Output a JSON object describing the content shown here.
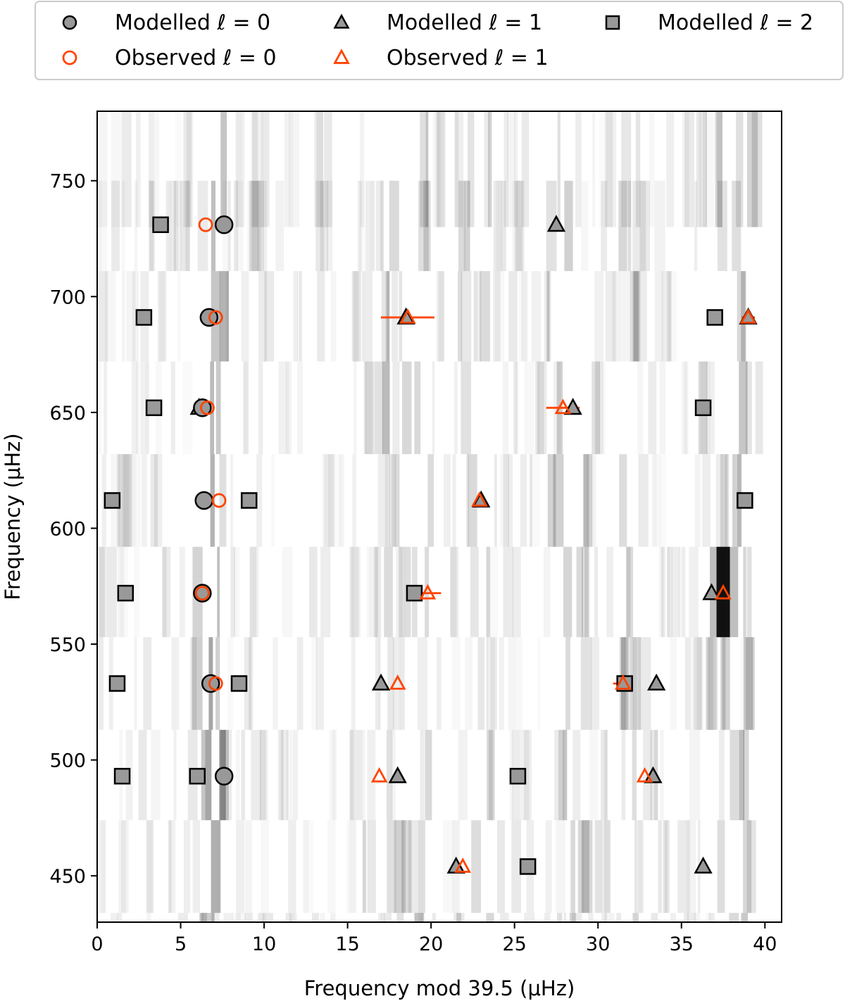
{
  "colors": {
    "modelled_fill": "#999999",
    "modelled_edge": "#000000",
    "observed": "#ff4500",
    "background": "#ffffff"
  },
  "chart_data": {
    "type": "scatter",
    "title": "",
    "xlabel": "Frequency mod 39.5 (μHz)",
    "ylabel": "Frequency (μHz)",
    "xlim": [
      0,
      41
    ],
    "ylim": [
      430,
      780
    ],
    "xticks": [
      0,
      5,
      10,
      15,
      20,
      25,
      30,
      35,
      40
    ],
    "yticks": [
      450,
      500,
      550,
      600,
      650,
      700,
      750
    ],
    "grid": false,
    "legend_placement": "top (above plot, 3 columns)",
    "background": "grayscale echelle power spectrum",
    "series": [
      {
        "name": "Modelled ℓ = 0",
        "marker": "circle",
        "style": "filled",
        "points": [
          [
            7.6,
            731
          ],
          [
            6.7,
            691
          ],
          [
            6.3,
            652
          ],
          [
            6.4,
            612
          ],
          [
            6.3,
            572
          ],
          [
            6.8,
            533
          ],
          [
            7.6,
            493
          ]
        ]
      },
      {
        "name": "Modelled ℓ = 1",
        "marker": "triangle",
        "style": "filled",
        "points": [
          [
            27.5,
            731
          ],
          [
            18.5,
            691
          ],
          [
            39.0,
            691
          ],
          [
            6.1,
            652
          ],
          [
            28.5,
            652
          ],
          [
            23.0,
            612
          ],
          [
            36.8,
            572
          ],
          [
            17.0,
            533
          ],
          [
            33.5,
            533
          ],
          [
            18.0,
            493
          ],
          [
            33.3,
            493
          ],
          [
            21.5,
            454
          ],
          [
            36.3,
            454
          ]
        ]
      },
      {
        "name": "Modelled ℓ = 2",
        "marker": "square",
        "style": "filled",
        "points": [
          [
            3.8,
            731
          ],
          [
            2.8,
            691
          ],
          [
            37.0,
            691
          ],
          [
            3.4,
            652
          ],
          [
            36.3,
            652
          ],
          [
            0.9,
            612
          ],
          [
            9.1,
            612
          ],
          [
            38.8,
            612
          ],
          [
            1.7,
            572
          ],
          [
            19.0,
            572
          ],
          [
            1.2,
            533
          ],
          [
            8.5,
            533
          ],
          [
            31.6,
            533
          ],
          [
            1.5,
            493
          ],
          [
            6.0,
            493
          ],
          [
            25.2,
            493
          ],
          [
            25.8,
            454
          ]
        ]
      },
      {
        "name": "Observed ℓ = 0",
        "marker": "circle",
        "style": "open",
        "points": [
          [
            6.5,
            731
          ],
          [
            7.1,
            691
          ],
          [
            6.6,
            652
          ],
          [
            7.3,
            612
          ],
          [
            6.3,
            572
          ],
          [
            7.1,
            533
          ]
        ]
      },
      {
        "name": "Observed ℓ = 1",
        "marker": "triangle",
        "style": "open",
        "points": [
          [
            18.6,
            691,
            1.6
          ],
          [
            39.0,
            691,
            0.4
          ],
          [
            27.9,
            652,
            1.0
          ],
          [
            22.9,
            612,
            0
          ],
          [
            19.8,
            572,
            0.8
          ],
          [
            37.5,
            572,
            0
          ],
          [
            18.0,
            533,
            0
          ],
          [
            31.5,
            533,
            0.6
          ],
          [
            16.9,
            493,
            0
          ],
          [
            32.8,
            493,
            0
          ],
          [
            21.9,
            454,
            0
          ]
        ]
      }
    ]
  }
}
